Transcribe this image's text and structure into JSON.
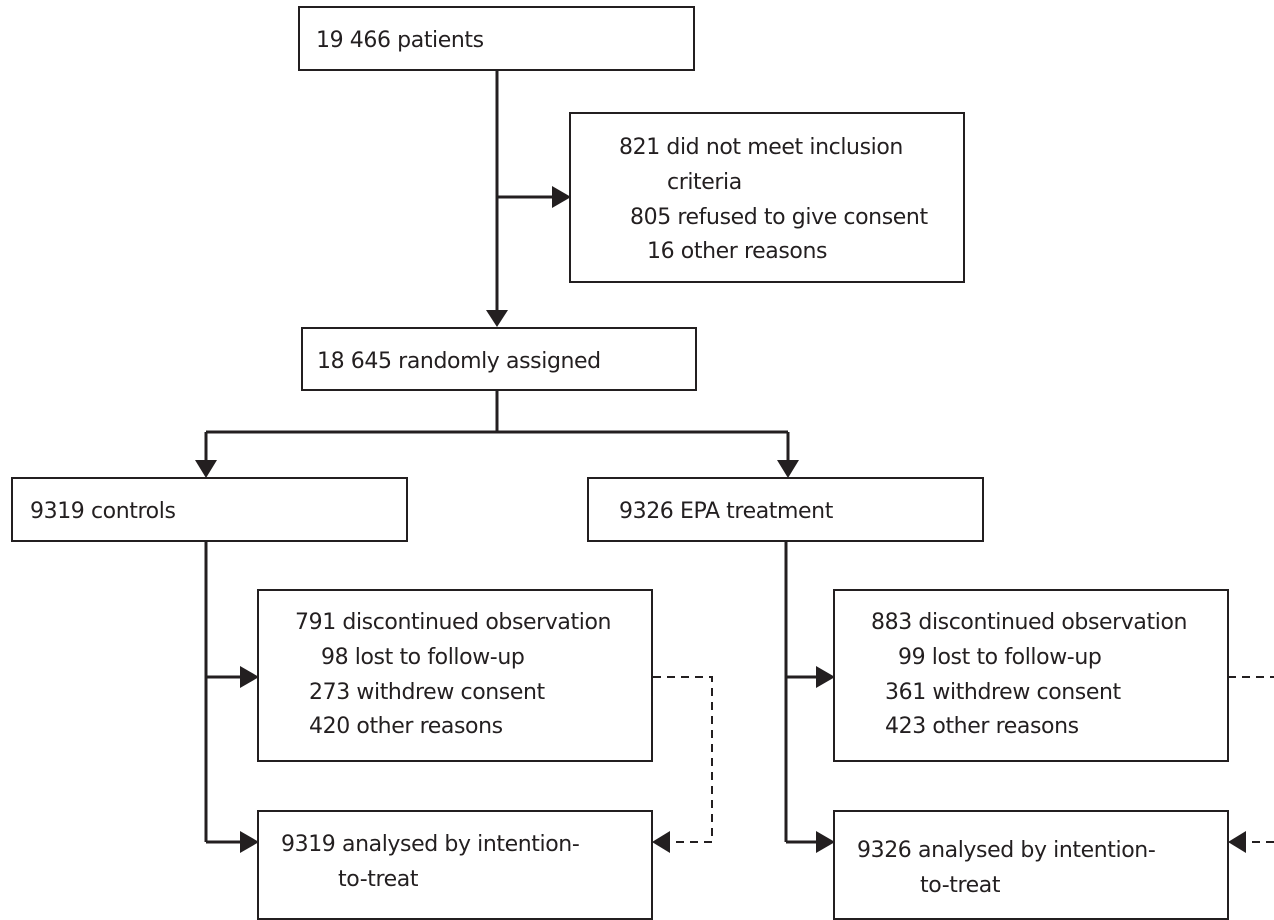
{
  "flowchart": {
    "screening": {
      "text": "19 466 patients"
    },
    "excluded": {
      "line1": "821 did not meet inclusion",
      "line2": "criteria",
      "line3": "805 refused to give consent",
      "line4": "16 other reasons"
    },
    "randomised": {
      "text": "18 645 randomly assigned"
    },
    "controls": {
      "allocated": "9319 controls",
      "discontinued": {
        "line1": "791 discontinued observation",
        "line2": "98 lost to follow-up",
        "line3": "273 withdrew consent",
        "line4": "420 other reasons"
      },
      "analysed": {
        "line1": "9319 analysed by intention-",
        "line2": "to-treat"
      }
    },
    "epa": {
      "allocated": "9326 EPA treatment",
      "discontinued": {
        "line1": "883 discontinued observation",
        "line2": "99 lost to follow-up",
        "line3": "361 withdrew consent",
        "line4": "423 other reasons"
      },
      "analysed": {
        "line1": "9326 analysed by intention-",
        "line2": "to-treat"
      }
    }
  },
  "colors": {
    "stroke": "#231f20",
    "background": "#ffffff"
  }
}
